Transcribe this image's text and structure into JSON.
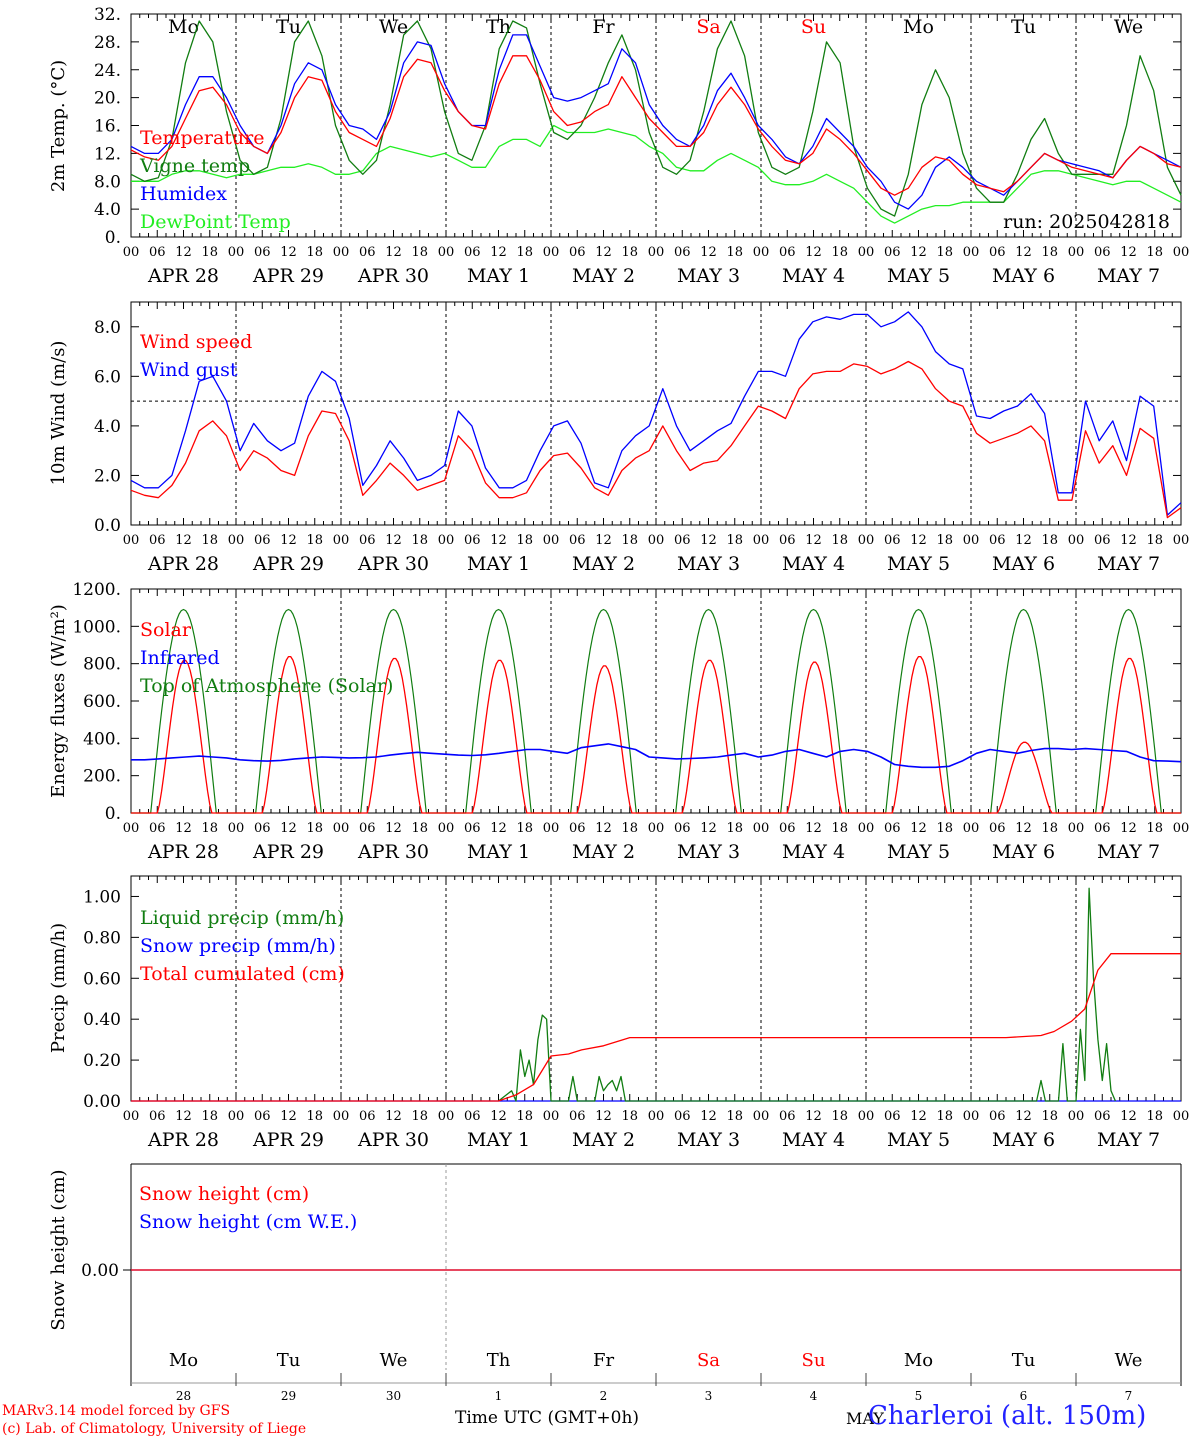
{
  "chart_data": [
    {
      "type": "line",
      "ylabel": "2m Temp. (°C)",
      "ylim": [
        0,
        32
      ],
      "yticks": [
        "0.",
        "4.0",
        "8.0",
        "12.",
        "16.",
        "20.",
        "24.",
        "28.",
        "32."
      ],
      "run_label": "run: 2025042818",
      "series": [
        {
          "name": "Temperature",
          "color": "#ff0000",
          "values": [
            12.5,
            11.5,
            11,
            13,
            17,
            21,
            21.5,
            19,
            15,
            13,
            12,
            15,
            20,
            23,
            22.5,
            18,
            15,
            14,
            13,
            17,
            23,
            25.5,
            25,
            21,
            18,
            16,
            15.5,
            22,
            26,
            26,
            22.5,
            18,
            16,
            16.5,
            18,
            19,
            23,
            20,
            17,
            15,
            13,
            13,
            15,
            19,
            21.5,
            19,
            15.5,
            13,
            11,
            10.5,
            12,
            15.5,
            14,
            12,
            9.5,
            7,
            6,
            7,
            10,
            11.5,
            11,
            9,
            7.5,
            7,
            6.5,
            8,
            10,
            12,
            11,
            10,
            9.5,
            9,
            8.5,
            11,
            13,
            12,
            10.5,
            10
          ]
        },
        {
          "name": "Vigne temp",
          "color": "#117d11",
          "values": [
            9,
            8,
            8.5,
            14,
            25,
            31,
            28,
            18,
            11,
            9,
            10,
            17,
            28,
            31,
            26,
            16,
            11,
            9,
            11,
            19,
            29,
            31,
            27,
            18,
            12,
            11,
            16,
            27,
            31,
            30,
            22,
            15,
            14,
            16,
            20,
            25,
            29,
            24,
            15,
            10,
            9,
            11,
            18,
            27,
            31,
            26,
            15,
            10,
            9,
            10,
            18,
            28,
            25,
            13,
            7,
            4,
            3,
            9,
            19,
            24,
            20,
            12,
            7,
            5,
            5,
            9,
            14,
            17,
            12,
            9,
            9,
            9,
            9,
            16,
            26,
            21,
            10,
            6
          ]
        },
        {
          "name": "Humidex",
          "color": "#0000ff",
          "values": [
            13,
            12,
            12,
            14,
            19,
            23,
            23,
            20,
            16,
            13,
            12,
            16,
            22,
            25,
            24,
            19,
            16,
            15.5,
            14,
            18,
            25,
            28,
            27.5,
            22,
            18,
            16,
            16,
            24,
            29,
            29,
            24.5,
            20,
            19.5,
            20,
            21,
            22,
            27,
            25,
            19,
            16,
            14,
            13,
            16,
            21,
            23.5,
            20,
            16,
            14,
            11.5,
            10.5,
            13,
            17,
            15,
            13,
            10,
            8,
            5,
            4,
            6,
            10,
            11.5,
            10,
            8,
            7,
            6,
            8,
            10,
            12,
            11,
            10.5,
            10,
            9.5,
            8.5,
            11,
            13,
            12,
            11,
            10
          ]
        },
        {
          "name": "DewPoint Temp",
          "color": "#22ee22",
          "values": [
            8,
            8,
            8,
            9,
            9.5,
            9.5,
            9,
            8.5,
            9,
            9,
            9.5,
            10,
            10,
            10.5,
            10,
            9,
            9,
            9.5,
            12,
            13,
            12.5,
            12,
            11.5,
            12,
            11,
            10,
            10,
            13,
            14,
            14,
            13,
            16,
            15,
            15,
            15,
            15.5,
            15,
            14.5,
            13,
            12,
            10,
            9.5,
            9.5,
            11,
            12,
            11,
            10,
            8,
            7.5,
            7.5,
            8,
            9,
            8,
            7,
            5,
            3,
            2,
            3,
            4,
            4.5,
            4.5,
            5,
            5,
            5,
            5,
            7,
            9,
            9.5,
            9.5,
            9,
            8.5,
            8,
            7.5,
            8,
            8,
            7,
            6,
            5
          ]
        }
      ]
    },
    {
      "type": "line",
      "ylabel": "10m Wind (m/s)",
      "ylim": [
        0,
        9
      ],
      "yticks": [
        "0.0",
        "2.0",
        "4.0",
        "6.0",
        "8.0"
      ],
      "reference_line": 5.0,
      "series": [
        {
          "name": "Wind speed",
          "color": "#ff0000",
          "values": [
            1.4,
            1.2,
            1.1,
            1.6,
            2.5,
            3.8,
            4.2,
            3.6,
            2.2,
            3.0,
            2.7,
            2.2,
            2.0,
            3.6,
            4.6,
            4.5,
            3.4,
            1.2,
            1.8,
            2.5,
            2.0,
            1.4,
            1.6,
            1.8,
            3.6,
            3.0,
            1.7,
            1.1,
            1.1,
            1.3,
            2.2,
            2.8,
            2.9,
            2.3,
            1.5,
            1.2,
            2.2,
            2.7,
            3.0,
            4.0,
            3.0,
            2.2,
            2.5,
            2.6,
            3.2,
            4.0,
            4.8,
            4.6,
            4.3,
            5.5,
            6.1,
            6.2,
            6.2,
            6.5,
            6.4,
            6.1,
            6.3,
            6.6,
            6.3,
            5.5,
            5.0,
            4.8,
            3.7,
            3.3,
            3.5,
            3.7,
            4.0,
            3.4,
            1.0,
            1.0,
            3.8,
            2.5,
            3.2,
            2.0,
            3.9,
            3.5,
            0.3,
            0.7
          ]
        },
        {
          "name": "Wind gust",
          "color": "#0000ff",
          "values": [
            1.8,
            1.5,
            1.5,
            2.0,
            3.8,
            5.8,
            6.0,
            5.0,
            3.0,
            4.1,
            3.4,
            3.0,
            3.3,
            5.2,
            6.2,
            5.8,
            4.3,
            1.6,
            2.4,
            3.4,
            2.7,
            1.8,
            2.0,
            2.4,
            4.6,
            4.0,
            2.3,
            1.5,
            1.5,
            1.8,
            3.0,
            4.0,
            4.2,
            3.3,
            1.7,
            1.5,
            3.0,
            3.6,
            4.0,
            5.5,
            4.0,
            3.0,
            3.4,
            3.8,
            4.1,
            5.2,
            6.2,
            6.2,
            6.0,
            7.5,
            8.2,
            8.4,
            8.3,
            8.5,
            8.5,
            8.0,
            8.2,
            8.6,
            8.0,
            7.0,
            6.5,
            6.3,
            4.4,
            4.3,
            4.6,
            4.8,
            5.3,
            4.5,
            1.3,
            1.3,
            5.0,
            3.4,
            4.2,
            2.6,
            5.2,
            4.8,
            0.4,
            0.9
          ]
        }
      ]
    },
    {
      "type": "line",
      "ylabel": "Energy fluxes (W/m²)",
      "ylim": [
        0,
        1200
      ],
      "yticks": [
        "0.",
        "200.",
        "400.",
        "600.",
        "800.",
        "1000.",
        "1200."
      ],
      "series": [
        {
          "name": "Solar",
          "color": "#ff0000",
          "peaks": [
            820,
            840,
            830,
            820,
            790,
            820,
            810,
            840,
            380,
            830
          ]
        },
        {
          "name": "Infrared",
          "color": "#0000ff",
          "values": [
            285,
            285,
            290,
            295,
            300,
            305,
            300,
            295,
            285,
            280,
            278,
            282,
            290,
            295,
            300,
            298,
            295,
            296,
            300,
            310,
            318,
            325,
            320,
            315,
            310,
            308,
            312,
            320,
            330,
            340,
            340,
            330,
            320,
            350,
            360,
            370,
            355,
            340,
            300,
            295,
            290,
            292,
            295,
            300,
            310,
            320,
            300,
            310,
            330,
            340,
            320,
            300,
            330,
            340,
            330,
            300,
            260,
            250,
            245,
            245,
            250,
            280,
            320,
            340,
            330,
            320,
            335,
            345,
            345,
            340,
            345,
            340,
            335,
            330,
            300,
            280,
            278,
            275
          ]
        },
        {
          "name": "Top of Atmosphere (Solar)",
          "color": "#117d11",
          "peak": 1090
        }
      ]
    },
    {
      "type": "line",
      "ylabel": "Precip (mm/h)",
      "ylim": [
        0,
        1.1
      ],
      "yticks": [
        "0.00",
        "0.20",
        "0.40",
        "0.60",
        "0.80",
        "1.00"
      ],
      "series": [
        {
          "name": "Liquid precip (mm/h)",
          "color": "#117d11",
          "points": [
            [
              84,
              0
            ],
            [
              87,
              0.05
            ],
            [
              88,
              0
            ],
            [
              89,
              0.25
            ],
            [
              90,
              0.12
            ],
            [
              91,
              0.2
            ],
            [
              92,
              0.08
            ],
            [
              93,
              0.3
            ],
            [
              94,
              0.42
            ],
            [
              95,
              0.4
            ],
            [
              96,
              0
            ],
            [
              100,
              0
            ],
            [
              101,
              0.12
            ],
            [
              102,
              0
            ],
            [
              106,
              0
            ],
            [
              107,
              0.12
            ],
            [
              108,
              0.05
            ],
            [
              109,
              0.08
            ],
            [
              110,
              0.1
            ],
            [
              111,
              0.05
            ],
            [
              112,
              0.12
            ],
            [
              113,
              0
            ],
            [
              207,
              0
            ],
            [
              208,
              0.1
            ],
            [
              209,
              0
            ],
            [
              212,
              0
            ],
            [
              213,
              0.28
            ],
            [
              214,
              0
            ],
            [
              216,
              0
            ],
            [
              217,
              0.35
            ],
            [
              218,
              0.1
            ],
            [
              219,
              1.04
            ],
            [
              220,
              0.6
            ],
            [
              221,
              0.3
            ],
            [
              222,
              0.1
            ],
            [
              223,
              0.28
            ],
            [
              224,
              0.05
            ],
            [
              225,
              0
            ]
          ]
        },
        {
          "name": "Snow precip (mm/h)",
          "color": "#0000ff",
          "points": [
            [
              0,
              0
            ],
            [
              240,
              0
            ]
          ]
        },
        {
          "name": "Total cumulated (cm)",
          "color": "#ff0000",
          "points": [
            [
              0,
              0
            ],
            [
              84,
              0
            ],
            [
              88,
              0.03
            ],
            [
              92,
              0.08
            ],
            [
              96,
              0.22
            ],
            [
              100,
              0.23
            ],
            [
              103,
              0.25
            ],
            [
              108,
              0.27
            ],
            [
              114,
              0.31
            ],
            [
              200,
              0.31
            ],
            [
              208,
              0.32
            ],
            [
              211,
              0.34
            ],
            [
              215,
              0.39
            ],
            [
              218,
              0.45
            ],
            [
              221,
              0.64
            ],
            [
              224,
              0.72
            ],
            [
              240,
              0.72
            ]
          ]
        }
      ]
    },
    {
      "type": "line",
      "ylabel": "Snow height (cm)",
      "yticks": [
        "0.00"
      ],
      "series": [
        {
          "name": "Snow height (cm)",
          "color": "#ff0000",
          "points": [
            [
              0,
              0
            ],
            [
              240,
              0
            ]
          ]
        },
        {
          "name": "Snow height (cm W.E.)",
          "color": "#0000ff",
          "points": [
            [
              0,
              0
            ],
            [
              240,
              0
            ]
          ]
        }
      ]
    }
  ],
  "x_axis": {
    "hour_ticks": [
      "00",
      "06",
      "12",
      "18"
    ],
    "final_tick": "00",
    "date_labels": [
      "APR 28",
      "APR 29",
      "APR 30",
      "MAY  1",
      "MAY  2",
      "MAY  3",
      "MAY  4",
      "MAY  5",
      "MAY  6",
      "MAY  7"
    ],
    "weekdays": [
      "Mo",
      "Tu",
      "We",
      "Th",
      "Fr",
      "Sa",
      "Su",
      "Mo",
      "Tu",
      "We"
    ],
    "weekday_colors": [
      "#000000",
      "#000000",
      "#000000",
      "#000000",
      "#000000",
      "#ff0000",
      "#ff0000",
      "#000000",
      "#000000",
      "#000000"
    ],
    "day_numbers": [
      "28",
      "29",
      "30",
      "1",
      "2",
      "3",
      "4",
      "5",
      "6",
      "7"
    ]
  },
  "footer": {
    "credit_line1": "MARv3.14 model forced by GFS",
    "credit_line2": "(c) Lab. of Climatology, University of Liege",
    "xlabel": "Time UTC (GMT+0h)",
    "month": "MAY",
    "station": "Charleroi (alt. 150m)"
  }
}
